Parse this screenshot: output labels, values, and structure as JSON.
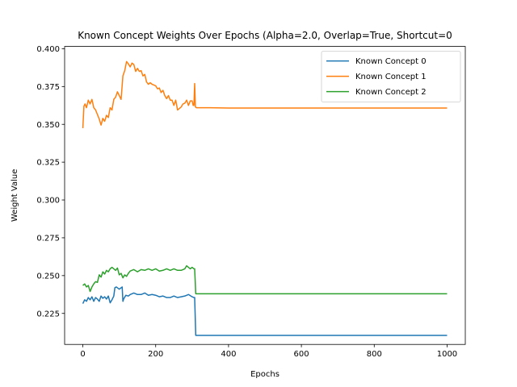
{
  "chart_data": {
    "type": "line",
    "title": "Known Concept Weights Over Epochs (Alpha=2.0, Overlap=True, Shortcut=0",
    "xlabel": "Epochs",
    "ylabel": "Weight Value",
    "xlim": [
      -50,
      1050
    ],
    "ylim": [
      0.2045,
      0.4015
    ],
    "xticks": [
      0,
      200,
      400,
      600,
      800,
      1000
    ],
    "xtick_labels": [
      "0",
      "200",
      "400",
      "600",
      "800",
      "1000"
    ],
    "yticks": [
      0.225,
      0.25,
      0.275,
      0.3,
      0.325,
      0.35,
      0.375,
      0.4
    ],
    "ytick_labels": [
      "0.225",
      "0.250",
      "0.275",
      "0.300",
      "0.325",
      "0.350",
      "0.375",
      "0.400"
    ],
    "grid": false,
    "legend_position": "top-right",
    "series": [
      {
        "name": "Known Concept 0",
        "color": "#1f77b4",
        "x": [
          0,
          5,
          10,
          15,
          20,
          25,
          30,
          35,
          40,
          45,
          50,
          55,
          60,
          65,
          70,
          75,
          80,
          85,
          88,
          92,
          100,
          108,
          110,
          112,
          118,
          125,
          130,
          140,
          150,
          160,
          170,
          180,
          190,
          200,
          210,
          220,
          230,
          240,
          250,
          260,
          270,
          280,
          290,
          300,
          305,
          307,
          310,
          320,
          350,
          400,
          500,
          600,
          700,
          800,
          900,
          1000
        ],
        "y": [
          0.2315,
          0.234,
          0.233,
          0.2355,
          0.234,
          0.236,
          0.233,
          0.2355,
          0.2345,
          0.233,
          0.2365,
          0.235,
          0.236,
          0.2345,
          0.2365,
          0.232,
          0.234,
          0.2365,
          0.242,
          0.2425,
          0.241,
          0.2425,
          0.233,
          0.2345,
          0.237,
          0.2365,
          0.2375,
          0.2385,
          0.2375,
          0.2375,
          0.2385,
          0.237,
          0.2375,
          0.237,
          0.236,
          0.2365,
          0.2355,
          0.2355,
          0.2365,
          0.2355,
          0.236,
          0.2365,
          0.2375,
          0.236,
          0.2355,
          0.2355,
          0.2105,
          0.2105,
          0.2105,
          0.2105,
          0.2105,
          0.2105,
          0.2105,
          0.2105,
          0.2105,
          0.2105
        ]
      },
      {
        "name": "Known Concept 1",
        "color": "#ff7f0e",
        "x": [
          0,
          3,
          6,
          10,
          15,
          20,
          25,
          30,
          35,
          40,
          45,
          50,
          55,
          60,
          65,
          70,
          75,
          80,
          85,
          90,
          95,
          100,
          105,
          110,
          115,
          120,
          125,
          130,
          135,
          140,
          145,
          150,
          155,
          160,
          165,
          170,
          175,
          180,
          185,
          190,
          195,
          200,
          205,
          210,
          215,
          220,
          225,
          230,
          235,
          240,
          245,
          250,
          255,
          260,
          265,
          270,
          275,
          280,
          285,
          290,
          295,
          300,
          303,
          305,
          307,
          309,
          312,
          320,
          350,
          400,
          500,
          600,
          700,
          800,
          900,
          1000
        ],
        "y": [
          0.3475,
          0.362,
          0.3635,
          0.361,
          0.366,
          0.3635,
          0.3665,
          0.361,
          0.3595,
          0.3565,
          0.3535,
          0.3495,
          0.354,
          0.352,
          0.356,
          0.3545,
          0.361,
          0.3595,
          0.3665,
          0.368,
          0.3715,
          0.369,
          0.3665,
          0.382,
          0.3855,
          0.3915,
          0.39,
          0.388,
          0.3905,
          0.3895,
          0.385,
          0.387,
          0.385,
          0.3855,
          0.382,
          0.383,
          0.378,
          0.3765,
          0.3775,
          0.3765,
          0.376,
          0.3755,
          0.3735,
          0.374,
          0.371,
          0.3725,
          0.369,
          0.367,
          0.369,
          0.366,
          0.366,
          0.3625,
          0.366,
          0.3595,
          0.3605,
          0.3615,
          0.3635,
          0.364,
          0.366,
          0.3625,
          0.3655,
          0.3655,
          0.3625,
          0.3625,
          0.377,
          0.3615,
          0.361,
          0.361,
          0.361,
          0.3608,
          0.3608,
          0.3608,
          0.3608,
          0.3608,
          0.3608,
          0.3608
        ]
      },
      {
        "name": "Known Concept 2",
        "color": "#2ca02c",
        "x": [
          0,
          5,
          10,
          15,
          20,
          25,
          30,
          35,
          40,
          45,
          50,
          55,
          60,
          65,
          70,
          75,
          80,
          85,
          90,
          95,
          100,
          105,
          110,
          115,
          120,
          125,
          130,
          140,
          150,
          160,
          170,
          180,
          190,
          200,
          210,
          220,
          230,
          240,
          250,
          260,
          270,
          280,
          285,
          290,
          295,
          300,
          305,
          307,
          310,
          320,
          350,
          400,
          500,
          600,
          700,
          800,
          900,
          1000
        ],
        "y": [
          0.2435,
          0.2445,
          0.2425,
          0.2435,
          0.2395,
          0.2425,
          0.2445,
          0.246,
          0.2455,
          0.2505,
          0.249,
          0.2525,
          0.251,
          0.2535,
          0.2525,
          0.2545,
          0.2555,
          0.2545,
          0.2535,
          0.255,
          0.2505,
          0.2515,
          0.2485,
          0.2505,
          0.2495,
          0.2515,
          0.253,
          0.254,
          0.2525,
          0.254,
          0.2535,
          0.2545,
          0.2535,
          0.2545,
          0.253,
          0.2535,
          0.2545,
          0.2535,
          0.2545,
          0.2535,
          0.2535,
          0.2545,
          0.2565,
          0.2555,
          0.2545,
          0.2555,
          0.2545,
          0.2545,
          0.238,
          0.238,
          0.238,
          0.238,
          0.238,
          0.238,
          0.238,
          0.238,
          0.238,
          0.238
        ]
      }
    ]
  }
}
